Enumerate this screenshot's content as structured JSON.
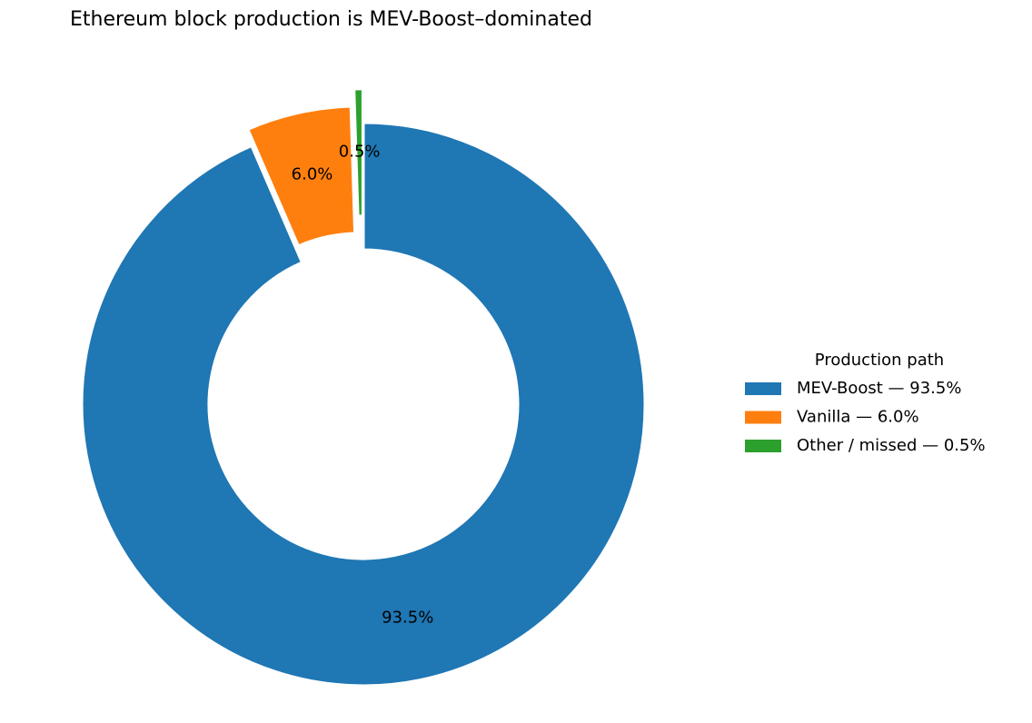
{
  "chart_data": {
    "type": "pie",
    "title": "Ethereum block production is MEV-Boost–dominated",
    "categories": [
      "MEV-Boost — 93.5%",
      "Vanilla — 6.0%",
      "Other / missed — 0.5%"
    ],
    "values": [
      93.5,
      6.0,
      0.5
    ],
    "value_labels": [
      "93.5%",
      "6.0%",
      "0.5%"
    ],
    "colors": [
      "#1f77b4",
      "#ff7f0e",
      "#2ca02c"
    ],
    "explode": [
      0,
      0.06,
      0.12
    ],
    "legend_title": "Production path",
    "legend": "right"
  }
}
